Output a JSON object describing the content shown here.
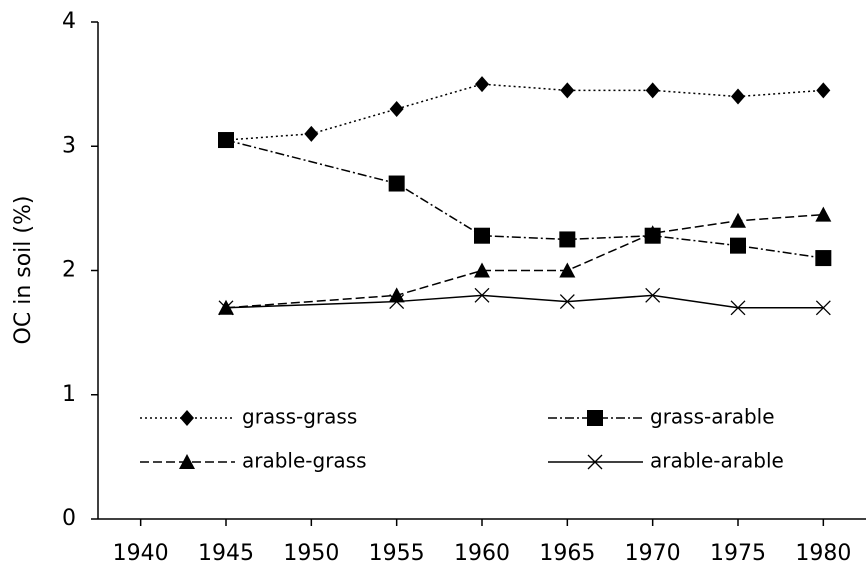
{
  "chart_data": {
    "type": "line",
    "y_label": "OC in soil (%)",
    "xlim": [
      1937.5,
      1982.5
    ],
    "xticks": [
      1940,
      1945,
      1950,
      1955,
      1960,
      1965,
      1970,
      1975,
      1980
    ],
    "ylim": [
      0,
      4
    ],
    "yticks": [
      0,
      1,
      2,
      3,
      4
    ],
    "grid": false,
    "series": [
      {
        "name": "grass-grass",
        "color": "#000000",
        "marker": "diamond",
        "dash": "dotted",
        "x": [
          1945,
          1950,
          1955,
          1960,
          1965,
          1970,
          1975,
          1980
        ],
        "values": [
          3.05,
          3.1,
          3.3,
          3.5,
          3.45,
          3.45,
          3.4,
          3.45
        ]
      },
      {
        "name": "grass-arable",
        "color": "#000000",
        "marker": "square",
        "dash": "dashdot",
        "x": [
          1945,
          1955,
          1960,
          1965,
          1970,
          1975,
          1980
        ],
        "values": [
          3.05,
          2.7,
          2.28,
          2.25,
          2.28,
          2.2,
          2.1
        ]
      },
      {
        "name": "arable-grass",
        "color": "#000000",
        "marker": "triangle",
        "dash": "dashed",
        "x": [
          1945,
          1955,
          1960,
          1965,
          1970,
          1975,
          1980
        ],
        "values": [
          1.7,
          1.8,
          2.0,
          2.0,
          2.3,
          2.4,
          2.45
        ]
      },
      {
        "name": "arable-arable",
        "color": "#000000",
        "marker": "x",
        "dash": "solid",
        "x": [
          1945,
          1955,
          1960,
          1965,
          1970,
          1975,
          1980
        ],
        "values": [
          1.7,
          1.75,
          1.8,
          1.75,
          1.8,
          1.7,
          1.7
        ]
      }
    ]
  }
}
